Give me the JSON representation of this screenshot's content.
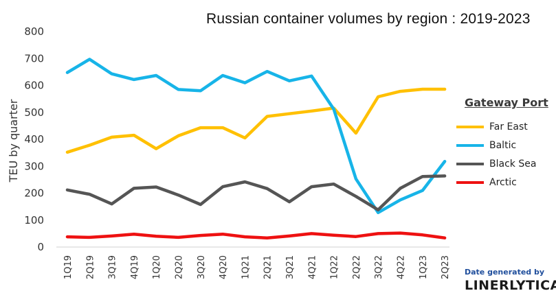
{
  "chart_data": {
    "type": "line",
    "title": "Russian container volumes by region : 2019-2023",
    "ylabel": "TEU by quarter",
    "xlabel": "",
    "ylim": [
      0,
      800
    ],
    "yticks": [
      0,
      100,
      200,
      300,
      400,
      500,
      600,
      700,
      800
    ],
    "categories": [
      "1Q19",
      "2Q19",
      "3Q19",
      "4Q19",
      "1Q20",
      "2Q20",
      "3Q20",
      "4Q20",
      "1Q21",
      "2Q21",
      "3Q21",
      "4Q21",
      "1Q22",
      "2Q22",
      "3Q22",
      "4Q22",
      "1Q23",
      "2Q23"
    ],
    "legend_title": "Gateway Port",
    "series": [
      {
        "name": "Far East",
        "color": "#FFC000",
        "values": [
          352,
          378,
          408,
          415,
          365,
          413,
          443,
          443,
          405,
          485,
          495,
          505,
          516,
          423,
          558,
          578,
          586,
          586
        ]
      },
      {
        "name": "Baltic",
        "color": "#17B4E8",
        "values": [
          648,
          697,
          643,
          622,
          637,
          585,
          580,
          637,
          610,
          652,
          617,
          635,
          512,
          253,
          128,
          175,
          210,
          318
        ]
      },
      {
        "name": "Black Sea",
        "color": "#555555",
        "values": [
          212,
          196,
          160,
          218,
          223,
          193,
          158,
          224,
          242,
          217,
          168,
          224,
          234,
          188,
          138,
          218,
          262,
          264
        ]
      },
      {
        "name": "Arctic",
        "color": "#EE1111",
        "values": [
          38,
          36,
          41,
          48,
          40,
          36,
          43,
          48,
          38,
          34,
          41,
          50,
          44,
          39,
          50,
          52,
          45,
          34
        ]
      }
    ]
  },
  "footer": {
    "line1": "Date generated by",
    "line2": "LINERLYTICA"
  }
}
